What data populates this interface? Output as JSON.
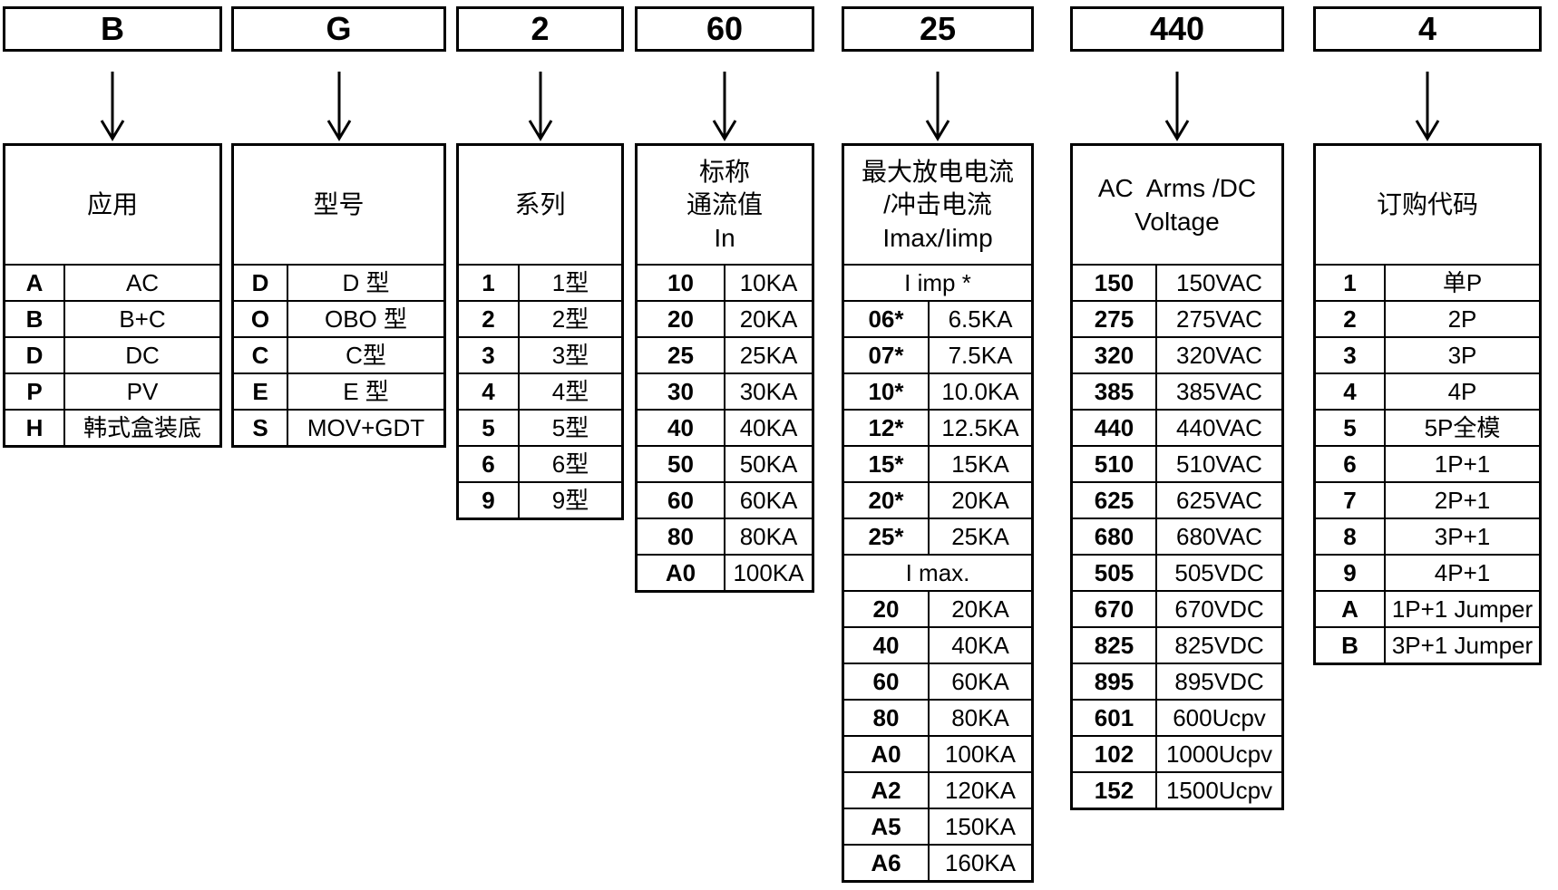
{
  "diagram": {
    "kind": "product-ordering-code-diagram",
    "colors": {
      "background": "#ffffff",
      "line": "#000000",
      "text": "#000000"
    },
    "columns": [
      {
        "id": "application",
        "code": "B",
        "title_lines": [
          "应用"
        ],
        "rows": [
          {
            "code": "A",
            "value": "AC"
          },
          {
            "code": "B",
            "value": "B+C"
          },
          {
            "code": "D",
            "value": "DC"
          },
          {
            "code": "P",
            "value": "PV"
          },
          {
            "code": "H",
            "value": "韩式盒装底"
          }
        ]
      },
      {
        "id": "model",
        "code": "G",
        "title_lines": [
          "型号"
        ],
        "rows": [
          {
            "code": "D",
            "value": "D 型"
          },
          {
            "code": "O",
            "value": "OBO 型"
          },
          {
            "code": "C",
            "value": "C型"
          },
          {
            "code": "E",
            "value": "E 型"
          },
          {
            "code": "S",
            "value": "MOV+GDT"
          }
        ]
      },
      {
        "id": "series",
        "code": "2",
        "title_lines": [
          "系列"
        ],
        "rows": [
          {
            "code": "1",
            "value": "1型"
          },
          {
            "code": "2",
            "value": "2型"
          },
          {
            "code": "3",
            "value": "3型"
          },
          {
            "code": "4",
            "value": "4型"
          },
          {
            "code": "5",
            "value": "5型"
          },
          {
            "code": "6",
            "value": "6型"
          },
          {
            "code": "9",
            "value": "9型"
          }
        ]
      },
      {
        "id": "nominal-discharge-current",
        "code": "60",
        "title_lines": [
          "标称",
          "通流值",
          "In"
        ],
        "rows": [
          {
            "code": "10",
            "value": "10KA"
          },
          {
            "code": "20",
            "value": "20KA"
          },
          {
            "code": "25",
            "value": "25KA"
          },
          {
            "code": "30",
            "value": "30KA"
          },
          {
            "code": "40",
            "value": "40KA"
          },
          {
            "code": "50",
            "value": "50KA"
          },
          {
            "code": "60",
            "value": "60KA"
          },
          {
            "code": "80",
            "value": "80KA"
          },
          {
            "code": "A0",
            "value": "100KA"
          }
        ]
      },
      {
        "id": "max-discharge-impulse-current",
        "code": "25",
        "title_lines": [
          "最大放电电流",
          "/冲击电流",
          "Imax/Iimp"
        ],
        "rows": [
          {
            "span": "I imp *"
          },
          {
            "code": "06*",
            "value": "6.5KA"
          },
          {
            "code": "07*",
            "value": "7.5KA"
          },
          {
            "code": "10*",
            "value": "10.0KA"
          },
          {
            "code": "12*",
            "value": "12.5KA"
          },
          {
            "code": "15*",
            "value": "15KA"
          },
          {
            "code": "20*",
            "value": "20KA"
          },
          {
            "code": "25*",
            "value": "25KA"
          },
          {
            "span": "I max."
          },
          {
            "code": "20",
            "value": "20KA"
          },
          {
            "code": "40",
            "value": "40KA"
          },
          {
            "code": "60",
            "value": "60KA"
          },
          {
            "code": "80",
            "value": "80KA"
          },
          {
            "code": "A0",
            "value": "100KA"
          },
          {
            "code": "A2",
            "value": "120KA"
          },
          {
            "code": "A5",
            "value": "150KA"
          },
          {
            "code": "A6",
            "value": "160KA"
          }
        ]
      },
      {
        "id": "voltage",
        "code": "440",
        "title_lines": [
          "AC  Arms /DC",
          "Voltage"
        ],
        "rows": [
          {
            "code": "150",
            "value": "150VAC"
          },
          {
            "code": "275",
            "value": "275VAC"
          },
          {
            "code": "320",
            "value": "320VAC"
          },
          {
            "code": "385",
            "value": "385VAC"
          },
          {
            "code": "440",
            "value": "440VAC"
          },
          {
            "code": "510",
            "value": "510VAC"
          },
          {
            "code": "625",
            "value": "625VAC"
          },
          {
            "code": "680",
            "value": "680VAC"
          },
          {
            "code": "505",
            "value": "505VDC"
          },
          {
            "code": "670",
            "value": "670VDC"
          },
          {
            "code": "825",
            "value": "825VDC"
          },
          {
            "code": "895",
            "value": "895VDC"
          },
          {
            "code": "601",
            "value": "600Ucpv"
          },
          {
            "code": "102",
            "value": "1000Ucpv"
          },
          {
            "code": "152",
            "value": "1500Ucpv"
          }
        ]
      },
      {
        "id": "order-code",
        "code": "4",
        "title_lines": [
          "订购代码"
        ],
        "rows": [
          {
            "code": "1",
            "value": "单P"
          },
          {
            "code": "2",
            "value": "2P"
          },
          {
            "code": "3",
            "value": "3P"
          },
          {
            "code": "4",
            "value": "4P"
          },
          {
            "code": "5",
            "value": "5P全模"
          },
          {
            "code": "6",
            "value": "1P+1"
          },
          {
            "code": "7",
            "value": "2P+1"
          },
          {
            "code": "8",
            "value": "3P+1"
          },
          {
            "code": "9",
            "value": "4P+1"
          },
          {
            "code": "A",
            "value": "1P+1 Jumper"
          },
          {
            "code": "B",
            "value": "3P+1 Jumper"
          }
        ]
      }
    ]
  }
}
